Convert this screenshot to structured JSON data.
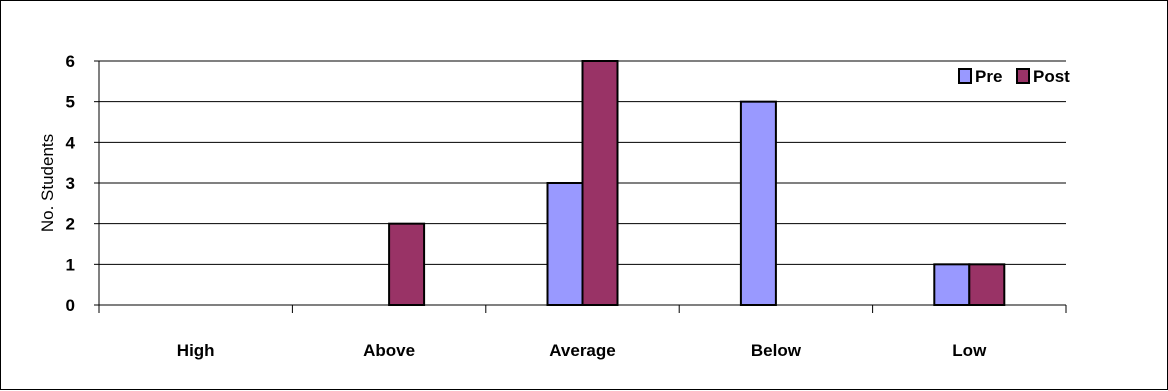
{
  "chart_data": {
    "type": "bar",
    "title": "",
    "xlabel": "",
    "ylabel": "No. Students",
    "categories": [
      "High",
      "Above",
      "Average",
      "Below",
      "Low"
    ],
    "series": [
      {
        "name": "Pre",
        "values": [
          0,
          0,
          3,
          5,
          1
        ],
        "color": "#9999ff"
      },
      {
        "name": "Post",
        "values": [
          0,
          2,
          6,
          0,
          1
        ],
        "color": "#993366"
      }
    ],
    "ylim": [
      0,
      6
    ],
    "yticks": [
      0,
      1,
      2,
      3,
      4,
      5,
      6
    ],
    "grid": true,
    "legend": "top-right"
  }
}
